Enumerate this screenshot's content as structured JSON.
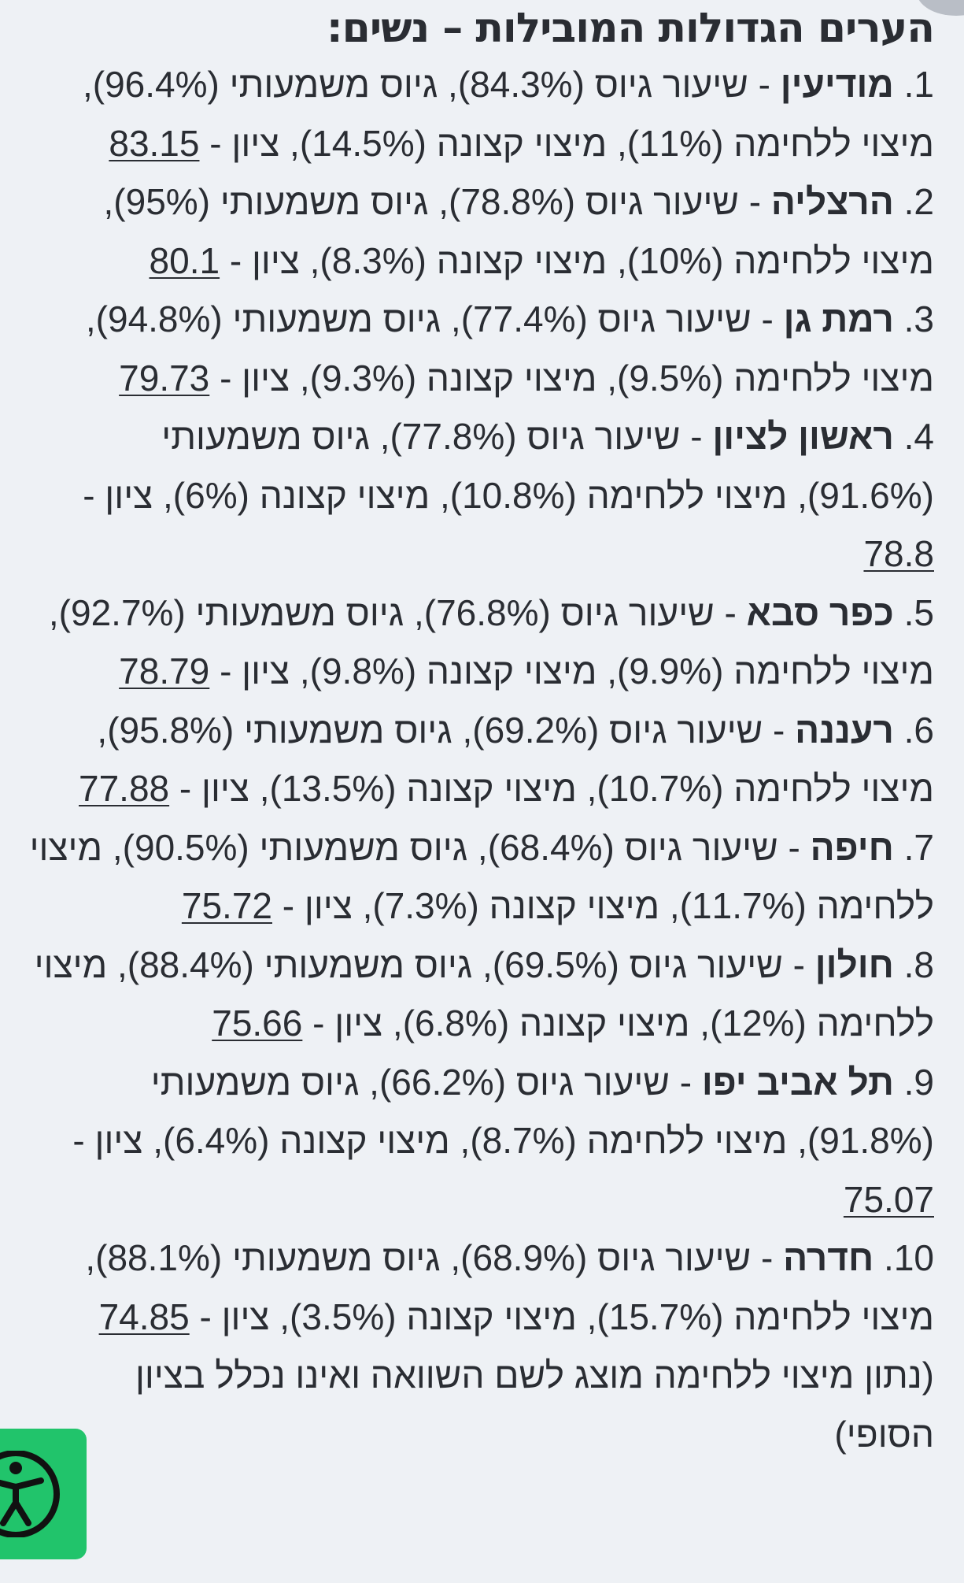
{
  "page": {
    "title": "הערים הגדולות המובילות – נשים:"
  },
  "items": [
    {
      "num": "1.",
      "city": "מודיעין",
      "details": "שיעור גיוס (84.3%), גיוס משמעותי (96.4%), מיצוי ללחימה (11%), מיצוי קצונה (14.5%), ציון -",
      "score": "83.15"
    },
    {
      "num": "2.",
      "city": "הרצליה",
      "details": "שיעור גיוס (78.8%), גיוס משמעותי (95%), מיצוי ללחימה (10%), מיצוי קצונה (8.3%), ציון -",
      "score": "80.1"
    },
    {
      "num": "3.",
      "city": "רמת גן",
      "details": "שיעור גיוס (77.4%), גיוס משמעותי (94.8%), מיצוי ללחימה (9.5%), מיצוי קצונה (9.3%), ציון -",
      "score": "79.73"
    },
    {
      "num": "4.",
      "city": "ראשון לציון",
      "details": "שיעור גיוס (77.8%), גיוס משמעותי (91.6%), מיצוי ללחימה (10.8%), מיצוי קצונה (6%), ציון -",
      "score": "78.8"
    },
    {
      "num": "5.",
      "city": "כפר סבא",
      "details": "שיעור גיוס (76.8%), גיוס משמעותי (92.7%), מיצוי ללחימה (9.9%), מיצוי קצונה (9.8%), ציון -",
      "score": "78.79"
    },
    {
      "num": "6.",
      "city": "רעננה",
      "details": "שיעור גיוס (69.2%), גיוס משמעותי (95.8%), מיצוי ללחימה (10.7%), מיצוי קצונה (13.5%), ציון -",
      "score": "77.88"
    },
    {
      "num": "7.",
      "city": "חיפה",
      "details": "שיעור גיוס (68.4%), גיוס משמעותי (90.5%), מיצוי ללחימה (11.7%), מיצוי קצונה (7.3%), ציון -",
      "score": "75.72"
    },
    {
      "num": "8.",
      "city": "חולון",
      "details": "שיעור גיוס (69.5%), גיוס משמעותי (88.4%), מיצוי ללחימה (12%), מיצוי קצונה (6.8%), ציון -",
      "score": "75.66"
    },
    {
      "num": "9.",
      "city": "תל אביב יפו",
      "details": "שיעור גיוס (66.2%), גיוס משמעותי (91.8%), מיצוי ללחימה (8.7%), מיצוי קצונה (6.4%), ציון -",
      "score": "75.07"
    },
    {
      "num": "10.",
      "city": "חדרה",
      "details": "שיעור גיוס (68.9%), גיוס משמעותי (88.1%), מיצוי ללחימה (15.7%), מיצוי קצונה (3.5%), ציון -",
      "score": "74.85"
    }
  ],
  "note": "(נתון מיצוי ללחימה מוצג לשם השוואה ואינו נכלל בציון הסופי)",
  "accessibility_button": {
    "icon": "accessibility-person-icon",
    "color": "#21c46b"
  }
}
